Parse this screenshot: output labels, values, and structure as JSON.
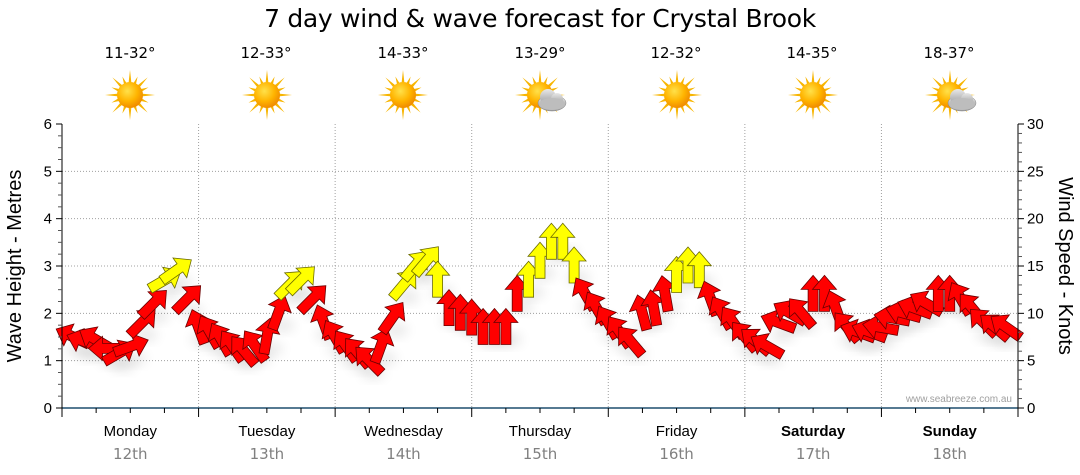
{
  "title": "7 day wind & wave forecast for Crystal Brook",
  "days": [
    {
      "name": "Monday",
      "date": "12th",
      "temp": "11-32°",
      "icon": "sunny-icon",
      "bold": false
    },
    {
      "name": "Tuesday",
      "date": "13th",
      "temp": "12-33°",
      "icon": "sunny-icon",
      "bold": false
    },
    {
      "name": "Wednesday",
      "date": "14th",
      "temp": "14-33°",
      "icon": "sunny-icon",
      "bold": false
    },
    {
      "name": "Thursday",
      "date": "15th",
      "temp": "13-29°",
      "icon": "partly-cloudy-icon",
      "bold": false
    },
    {
      "name": "Friday",
      "date": "16th",
      "temp": "12-32°",
      "icon": "sunny-icon",
      "bold": false
    },
    {
      "name": "Saturday",
      "date": "17th",
      "temp": "14-35°",
      "icon": "sunny-icon",
      "bold": true
    },
    {
      "name": "Sunday",
      "date": "18th",
      "temp": "18-37°",
      "icon": "partly-cloudy-icon",
      "bold": true
    }
  ],
  "watermark": "www.seabreeze.com.au",
  "colors": {
    "arrow_low": "#ff0000",
    "arrow_high": "#ffff00",
    "arrow_outline_low": "#6b0000",
    "arrow_outline_high": "#6b6b00",
    "axis": "#1f4e6e",
    "grid": "#a0a0a0"
  },
  "chart_data": {
    "type": "scatter",
    "title": "7 day wind & wave forecast for Crystal Brook",
    "xlabel": "",
    "ylabel": "Wave Height - Metres",
    "y2label": "Wind Speed - Knots",
    "ylim": [
      0,
      6
    ],
    "y2lim": [
      0,
      30
    ],
    "yticks": [
      "0",
      "1",
      "2",
      "3",
      "4",
      "5",
      "6"
    ],
    "y2ticks": [
      "0",
      "5",
      "10",
      "15",
      "20",
      "25",
      "30"
    ],
    "x_categories": [
      "Monday 12th",
      "Tuesday 13th",
      "Wednesday 14th",
      "Thursday 15th",
      "Friday 16th",
      "Saturday 17th",
      "Sunday 18th"
    ],
    "x_unit": "hours from Monday 00:00",
    "xlim": [
      0,
      168
    ],
    "grid": true,
    "color_threshold_knots": 13,
    "wind_series": {
      "name": "Wind (arrow = direction of travel)",
      "hours": [
        2,
        4,
        6,
        8,
        10,
        12,
        14,
        16,
        18,
        20,
        22,
        24,
        26,
        28,
        30,
        32,
        34,
        36,
        38,
        40,
        42,
        44,
        46,
        48,
        50,
        52,
        54,
        56,
        58,
        60,
        62,
        64,
        66,
        68,
        70,
        72,
        74,
        76,
        78,
        80,
        82,
        84,
        86,
        88,
        90,
        92,
        94,
        96,
        98,
        100,
        102,
        104,
        106,
        108,
        110,
        112,
        114,
        116,
        118,
        120,
        122,
        124,
        126,
        128,
        130,
        132,
        134,
        136,
        138,
        140,
        142,
        144,
        146,
        148,
        150,
        152,
        154,
        156,
        158,
        160,
        162,
        164,
        166
      ],
      "knots": [
        7.5,
        7,
        7.2,
        6.3,
        5.8,
        6.5,
        9.0,
        11.0,
        13.5,
        14.5,
        11.5,
        8.5,
        8.0,
        7.2,
        6.5,
        6.0,
        6.5,
        7.5,
        10.0,
        13.0,
        13.5,
        11.5,
        9.0,
        7.5,
        6.5,
        5.8,
        5.0,
        6.5,
        9.5,
        13.0,
        15.0,
        15.5,
        13.5,
        10.5,
        10.0,
        9.5,
        8.5,
        8.5,
        8.5,
        12.0,
        13.5,
        15.5,
        17.5,
        17.5,
        15.0,
        12.0,
        10.5,
        9.0,
        8.0,
        7.0,
        10.0,
        10.5,
        12.0,
        14.0,
        15.0,
        14.5,
        11.5,
        10.0,
        9.0,
        7.5,
        7.0,
        6.5,
        9.0,
        10.0,
        10.0,
        12.0,
        12.0,
        10.5,
        8.5,
        8.0,
        8.0,
        8.5,
        9.5,
        10.0,
        10.5,
        11.0,
        12.0,
        12.0,
        11.5,
        10.5,
        9.0,
        8.5,
        8.5
      ],
      "bearing_deg": [
        295,
        290,
        300,
        270,
        60,
        70,
        45,
        45,
        60,
        55,
        45,
        340,
        330,
        330,
        325,
        320,
        325,
        10,
        20,
        45,
        45,
        45,
        340,
        330,
        325,
        320,
        315,
        20,
        35,
        40,
        40,
        40,
        0,
        0,
        0,
        0,
        0,
        0,
        0,
        0,
        0,
        0,
        0,
        0,
        0,
        330,
        330,
        330,
        325,
        320,
        345,
        350,
        350,
        0,
        0,
        0,
        340,
        330,
        325,
        320,
        310,
        300,
        290,
        300,
        320,
        0,
        0,
        340,
        320,
        290,
        290,
        280,
        280,
        285,
        290,
        300,
        0,
        0,
        330,
        320,
        315,
        310,
        305
      ]
    }
  }
}
